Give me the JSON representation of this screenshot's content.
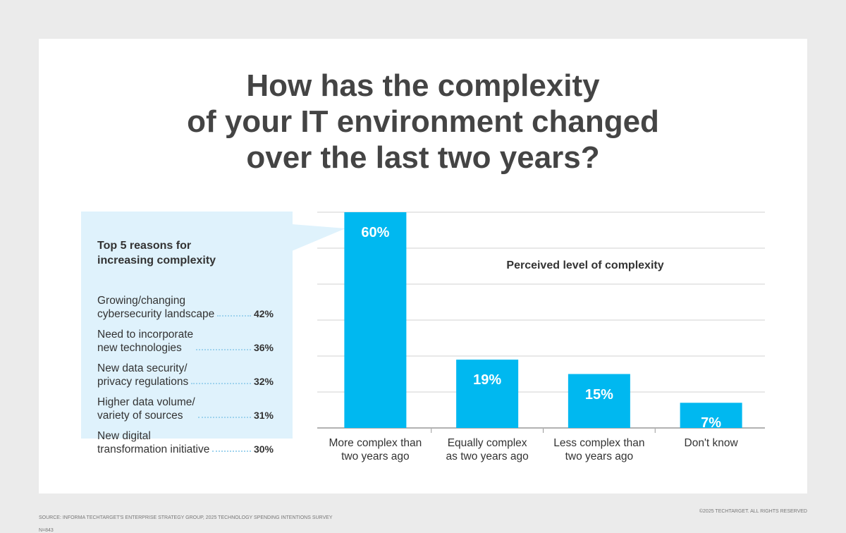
{
  "title": "How has the complexity\nof your IT environment changed\nover the last two years?",
  "source": "SOURCE: INFORMA TECHTARGET'S ENTERPRISE STRATEGY GROUP, 2025 TECHNOLOGY SPENDING INTENTIONS SURVEY",
  "sample": "N=843",
  "copyright": "©2025 TECHTARGET. ALL RIGHTS RESERVED",
  "chart_data": [
    {
      "type": "bar",
      "annotation": "Perceived level of complexity",
      "categories": [
        "More complex than\ntwo years ago",
        "Equally complex\nas two years ago",
        "Less complex than\ntwo years ago",
        "Don't know"
      ],
      "values": [
        60,
        19,
        15,
        7
      ],
      "value_labels": [
        "60%",
        "19%",
        "15%",
        "7%"
      ],
      "color": "#00b8f0",
      "ylim": [
        0,
        60
      ],
      "yticks": [
        0,
        10,
        20,
        30,
        40,
        50,
        60
      ],
      "grid": true
    },
    {
      "type": "ranked-list",
      "title": "Top 5 reasons for\nincreasing complexity",
      "categories": [
        "Growing/changing\ncybersecurity landscape",
        "Need to incorporate\nnew technologies",
        "New data security/\nprivacy regulations",
        "Higher data volume/\nvariety of sources",
        "New digital\ntransformation initiative"
      ],
      "values": [
        42,
        36,
        32,
        31,
        30
      ],
      "value_labels": [
        "42%",
        "36%",
        "32%",
        "31%",
        "30%"
      ]
    }
  ]
}
